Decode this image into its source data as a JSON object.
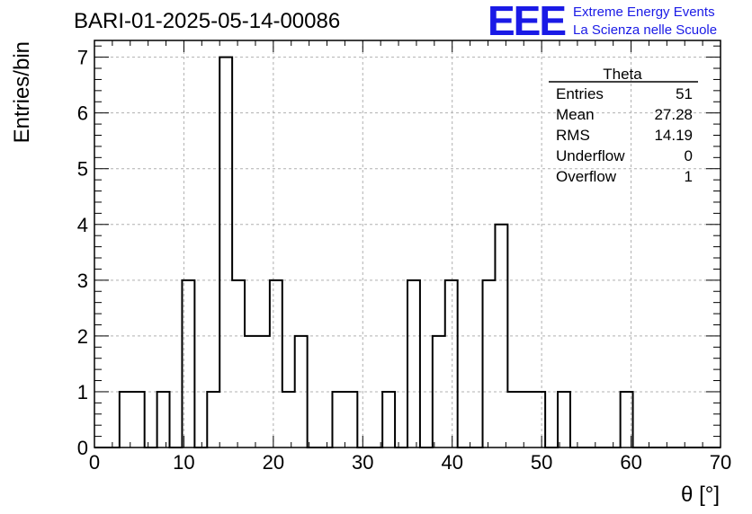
{
  "header": {
    "title": "BARI-01-2025-05-14-00086",
    "logo_mark": "EEE",
    "logo_line1": "Extreme Energy Events",
    "logo_line2": "La Scienza nelle Scuole"
  },
  "stats_box": {
    "title": "Theta",
    "rows": [
      {
        "label": "Entries",
        "value": "51"
      },
      {
        "label": "Mean",
        "value": "27.28"
      },
      {
        "label": "RMS",
        "value": "14.19"
      },
      {
        "label": "Underflow",
        "value": "0"
      },
      {
        "label": "Overflow",
        "value": "1"
      }
    ]
  },
  "chart_data": {
    "type": "bar",
    "style": "step-histogram",
    "title": "BARI-01-2025-05-14-00086",
    "xlabel": "θ [°]",
    "ylabel": "Entries/bin",
    "xlim": [
      0,
      70
    ],
    "ylim": [
      0,
      7.3
    ],
    "bin_width": 1.4,
    "bin_edges_start": 0,
    "values": [
      0,
      0,
      1,
      1,
      0,
      1,
      0,
      3,
      0,
      1,
      7,
      3,
      2,
      2,
      3,
      1,
      2,
      0,
      0,
      1,
      1,
      0,
      0,
      1,
      0,
      3,
      0,
      2,
      3,
      0,
      0,
      3,
      4,
      1,
      1,
      1,
      0,
      1,
      0,
      0,
      0,
      0,
      1,
      0,
      0,
      0,
      0,
      0,
      0,
      0
    ],
    "xticks": [
      0,
      10,
      20,
      30,
      40,
      50,
      60,
      70
    ],
    "yticks": [
      0,
      1,
      2,
      3,
      4,
      5,
      6,
      7
    ],
    "grid": true,
    "line_color": "#000000",
    "grid_color": "#b0b0b0"
  }
}
